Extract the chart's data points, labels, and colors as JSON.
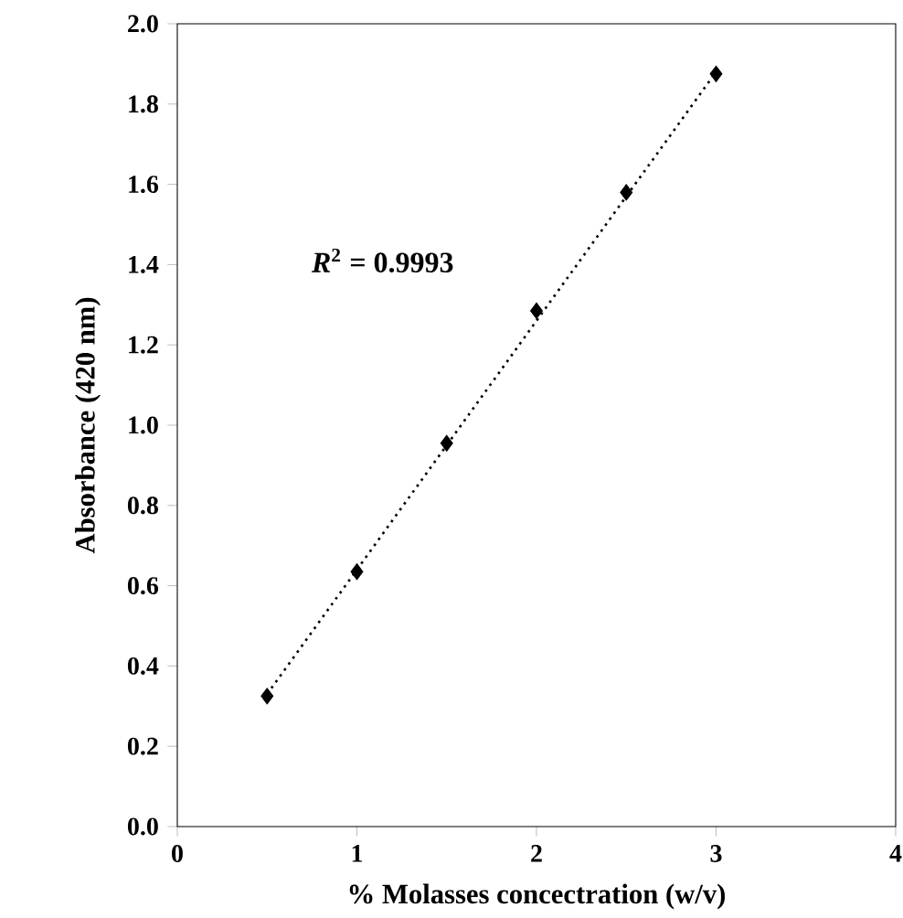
{
  "chart_data": {
    "type": "scatter",
    "xlabel": "% Molasses concectration (w/v)",
    "ylabel": "Absorbance (420 nm)",
    "x": [
      0.5,
      1,
      1.5,
      2,
      2.5,
      3
    ],
    "series": [
      {
        "type": "scatter",
        "color": "#000000",
        "marker": "diamond",
        "values": [
          0.325,
          0.635,
          0.955,
          1.285,
          1.58,
          1.875
        ]
      },
      {
        "type": "line",
        "color": "#000000",
        "line_style": "dotted",
        "marker": "none",
        "x": [
          0.5,
          3
        ],
        "values": [
          0.33,
          1.88
        ]
      }
    ],
    "annotations": [
      "*R*$^{2}$ = 0.9993"
    ],
    "xlim": [
      0,
      4
    ],
    "xticks": [
      0,
      1,
      2,
      3,
      4
    ],
    "ylim": [
      0,
      2
    ],
    "yticks": [
      {
        "value": 0,
        "label": "0.0"
      },
      {
        "value": 0.2,
        "label": "0.2"
      },
      {
        "value": 0.4,
        "label": "0.4"
      },
      {
        "value": 0.6,
        "label": "0.6"
      },
      {
        "value": 0.8,
        "label": "0.8"
      },
      {
        "value": 1.0,
        "label": "1.0"
      },
      {
        "value": 1.2,
        "label": "1.2"
      },
      {
        "value": 1.4,
        "label": "1.4"
      },
      {
        "value": 1.6,
        "label": "1.6"
      },
      {
        "value": 1.8,
        "label": "1.8"
      },
      {
        "value": 2.0,
        "label": "2.0"
      }
    ]
  }
}
